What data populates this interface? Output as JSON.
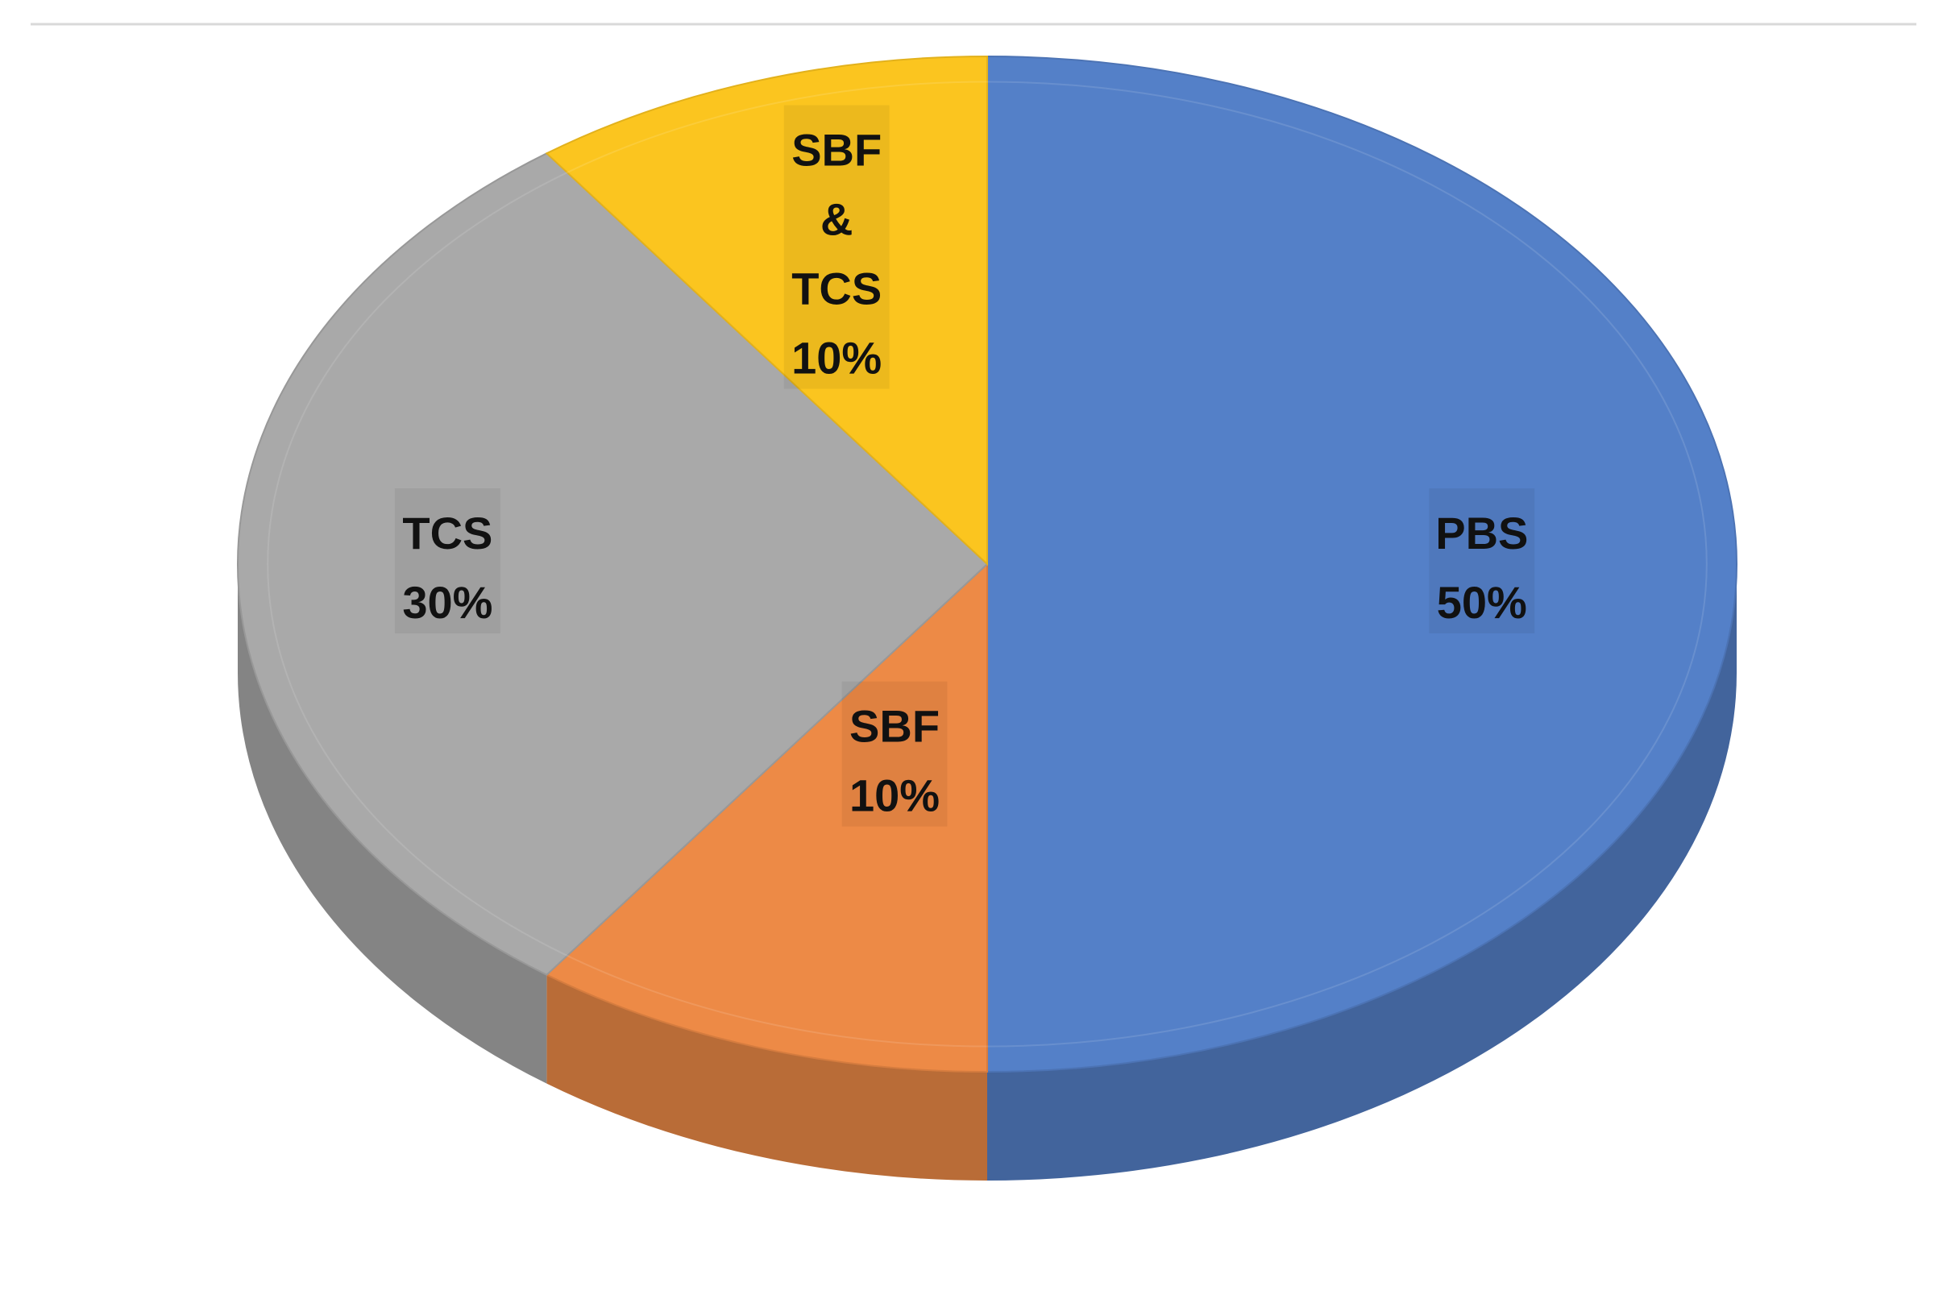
{
  "chart_data": {
    "type": "pie",
    "title": "",
    "style": "3d",
    "slices": [
      {
        "name": "PBS",
        "value": 50,
        "label_lines": [
          "PBS",
          "50%"
        ],
        "color": "#5480C8"
      },
      {
        "name": "SBF",
        "value": 10,
        "label_lines": [
          "SBF",
          "10%"
        ],
        "color": "#ED8A46"
      },
      {
        "name": "TCS",
        "value": 30,
        "label_lines": [
          "TCS",
          "30%"
        ],
        "color": "#A9A9A9"
      },
      {
        "name": "SBF & TCS",
        "value": 10,
        "label_lines": [
          "SBF",
          "&",
          "TCS",
          "10%"
        ],
        "color": "#FBC51F"
      }
    ],
    "legend": "none",
    "grid": false
  }
}
